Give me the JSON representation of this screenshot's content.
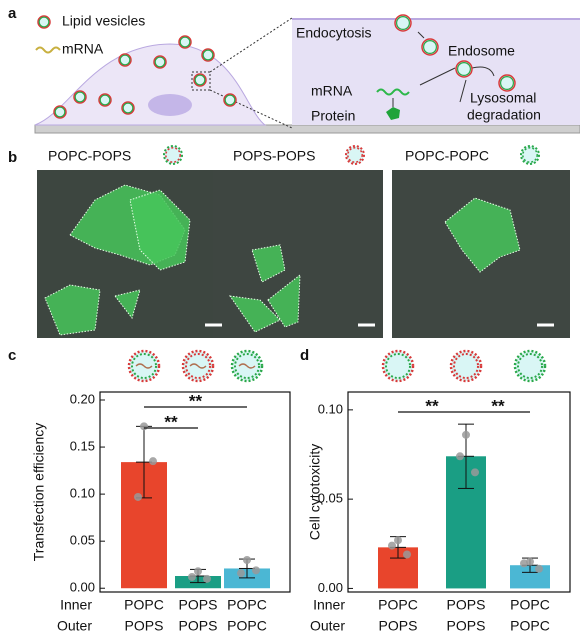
{
  "panel_labels": [
    "a",
    "b",
    "c",
    "d"
  ],
  "diagram": {
    "legend": [
      "Lipid vesicles",
      "mRNA"
    ],
    "labels": [
      "Endocytosis",
      "Endosome",
      "mRNA",
      "Protein",
      "Lysosomal",
      "degradation"
    ]
  },
  "images": {
    "titles": [
      "POPC-POPS",
      "POPS-POPS",
      "POPC-POPC"
    ]
  },
  "chart_data": [
    {
      "type": "bar",
      "ylabel": "Transfection efficiency",
      "row_labels": [
        "Inner",
        "Outer"
      ],
      "inner": [
        "POPC",
        "POPS",
        "POPC"
      ],
      "outer": [
        "POPS",
        "POPS",
        "POPC"
      ],
      "values": [
        0.134,
        0.013,
        0.021
      ],
      "errors": [
        0.038,
        0.007,
        0.01
      ],
      "points": [
        [
          0.172,
          0.135,
          0.097
        ],
        [
          0.018,
          0.01,
          0.012
        ],
        [
          0.03,
          0.019,
          0.016
        ]
      ],
      "colors": [
        "#e8452c",
        "#1a9e84",
        "#4bb7d4"
      ],
      "ylim": [
        -0.004,
        0.2085
      ],
      "yticks": [
        {
          "value": 0,
          "label": "0.00"
        },
        0.05,
        {
          "value": 0.1,
          "label": "0.10"
        },
        0.15,
        {
          "value": 0.2,
          "label": "0.20"
        }
      ],
      "annotations": [
        "**",
        "**"
      ]
    },
    {
      "type": "bar",
      "ylabel": "Cell cytotoxicity",
      "row_labels": [
        "Inner",
        "Outer"
      ],
      "inner": [
        "POPC",
        "POPS",
        "POPC"
      ],
      "outer": [
        "POPS",
        "POPS",
        "POPC"
      ],
      "values": [
        0.023,
        0.074,
        0.013
      ],
      "errors": [
        0.006,
        0.018,
        0.004
      ],
      "points": [
        [
          0.027,
          0.019,
          0.024
        ],
        [
          0.086,
          0.065,
          0.074
        ],
        [
          0.015,
          0.011,
          0.014
        ]
      ],
      "colors": [
        "#e8452c",
        "#1a9e84",
        "#4bb7d4"
      ],
      "ylim": [
        -0.002,
        0.11
      ],
      "yticks": [
        {
          "value": 0,
          "label": "0.00"
        },
        0.05,
        {
          "value": 0.1,
          "label": "0.10"
        }
      ],
      "annotations": [
        "**",
        "**"
      ]
    }
  ]
}
